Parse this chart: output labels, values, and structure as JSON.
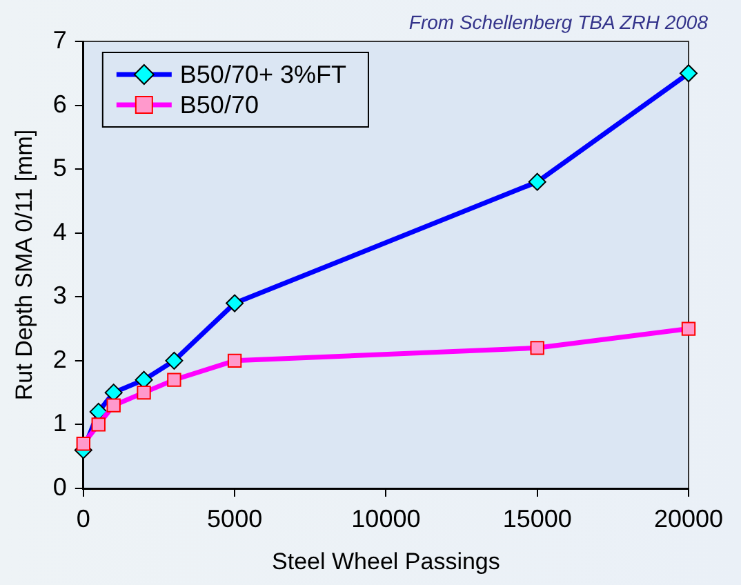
{
  "chart_data": {
    "type": "line",
    "annotations": [
      "From Schellenberg TBA ZRH 2008"
    ],
    "xlabel": "Steel Wheel Passings",
    "ylabel": "Rut Depth SMA 0/11 [mm]",
    "x": [
      0,
      500,
      1000,
      2000,
      3000,
      5000,
      15000,
      20000
    ],
    "series": [
      {
        "name": "B50/70+ 3%FT",
        "color": "#0000ff",
        "marker": "diamond",
        "values": [
          0.6,
          1.2,
          1.5,
          1.7,
          2.0,
          2.9,
          4.8,
          6.5
        ]
      },
      {
        "name": "B50/70",
        "color": "#ff00ff",
        "marker": "square",
        "values": [
          0.7,
          1.0,
          1.3,
          1.5,
          1.7,
          2.0,
          2.2,
          2.5
        ]
      }
    ],
    "xlim": [
      0,
      20000
    ],
    "xticks": [
      0,
      5000,
      10000,
      15000,
      20000
    ],
    "ylim": [
      0,
      7
    ],
    "yticks": [
      0,
      1,
      2,
      3,
      4,
      5,
      6,
      7
    ],
    "grid": false,
    "legend": "top left"
  }
}
